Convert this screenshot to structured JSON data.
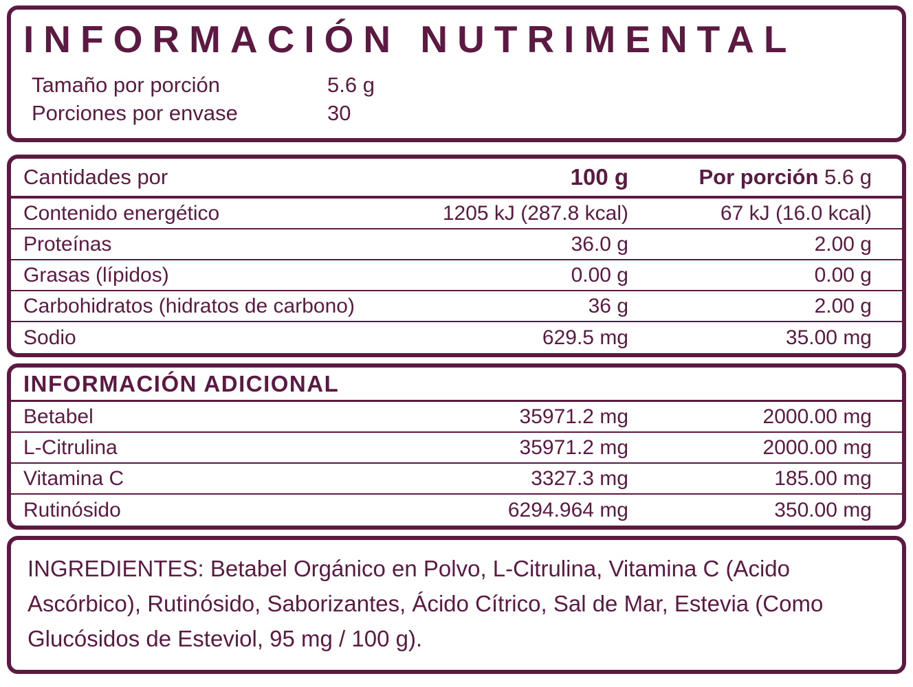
{
  "colors": {
    "accent": "#5c1a43",
    "bg": "#ffffff"
  },
  "header": {
    "title": "INFORMACIÓN NUTRIMENTAL",
    "serving_size_label": "Tamaño por porción",
    "serving_size_value": "5.6 g",
    "servings_label": "Porciones por envase",
    "servings_value": "30"
  },
  "nutrition_table": {
    "amounts_label": "Cantidades por",
    "col_100g": "100 g",
    "col_portion_label": "Por porción",
    "col_portion_value": "5.6 g",
    "rows": [
      {
        "label": "Contenido energético",
        "per100": "1205 kJ (287.8 kcal)",
        "portion": "67 kJ (16.0 kcal)"
      },
      {
        "label": "Proteínas",
        "per100": "36.0 g",
        "portion": "2.00 g"
      },
      {
        "label": "Grasas (lípidos)",
        "per100": "0.00 g",
        "portion": "0.00 g"
      },
      {
        "label": "Carbohidratos (hidratos de carbono)",
        "per100": "36 g",
        "portion": "2.00 g"
      },
      {
        "label": "Sodio",
        "per100": "629.5 mg",
        "portion": "35.00 mg"
      }
    ]
  },
  "additional_table": {
    "title": "INFORMACIÓN ADICIONAL",
    "rows": [
      {
        "label": "Betabel",
        "per100": "35971.2 mg",
        "portion": "2000.00 mg"
      },
      {
        "label": "L-Citrulina",
        "per100": "35971.2 mg",
        "portion": "2000.00 mg"
      },
      {
        "label": "Vitamina C",
        "per100": "3327.3 mg",
        "portion": "185.00 mg"
      },
      {
        "label": "Rutinósido",
        "per100": "6294.964 mg",
        "portion": "350.00 mg"
      }
    ]
  },
  "ingredients": {
    "text": "INGREDIENTES: Betabel Orgánico en Polvo, L-Citrulina, Vitamina C (Acido Ascórbico), Rutinósido, Saborizantes, Ácido Cítrico, Sal de Mar, Estevia (Como Glucósidos de Esteviol, 95 mg / 100 g)."
  }
}
